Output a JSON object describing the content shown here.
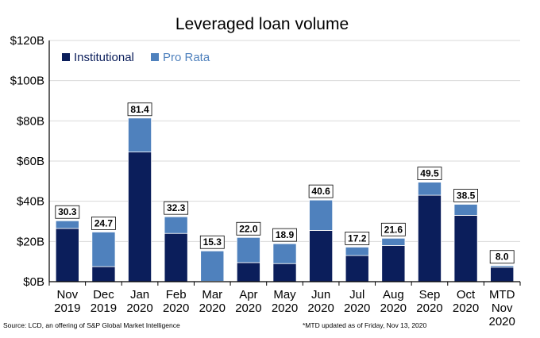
{
  "chart_data": {
    "type": "bar",
    "stacked": true,
    "title": "Leveraged loan volume",
    "xlabel": "",
    "ylabel": "",
    "categories": [
      [
        "Nov",
        "2019"
      ],
      [
        "Dec",
        "2019"
      ],
      [
        "Jan",
        "2020"
      ],
      [
        "Feb",
        "2020"
      ],
      [
        "Mar",
        "2020"
      ],
      [
        "Apr",
        "2020"
      ],
      [
        "May",
        "2020"
      ],
      [
        "Jun",
        "2020"
      ],
      [
        "Jul",
        "2020"
      ],
      [
        "Aug",
        "2020"
      ],
      [
        "Sep",
        "2020"
      ],
      [
        "Oct",
        "2020"
      ],
      [
        "MTD",
        "Nov",
        "2020"
      ]
    ],
    "series": [
      {
        "name": "Institutional",
        "color": "#0b1e5b",
        "values": [
          26.5,
          7.5,
          64.5,
          24.0,
          0.2,
          9.5,
          9.0,
          25.5,
          13.0,
          18.0,
          43.0,
          33.0,
          7.2
        ]
      },
      {
        "name": "Pro Rata",
        "color": "#4f81bd",
        "values": [
          3.8,
          17.2,
          16.9,
          8.3,
          15.1,
          12.5,
          9.9,
          15.1,
          4.2,
          3.6,
          6.5,
          5.5,
          0.8
        ]
      }
    ],
    "totals": [
      "30.3",
      "24.7",
      "81.4",
      "32.3",
      "15.3",
      "22.0",
      "18.9",
      "40.6",
      "17.2",
      "21.6",
      "49.5",
      "38.5",
      "8.0"
    ],
    "ylim": [
      0,
      120
    ],
    "yticks": [
      "$0B",
      "$20B",
      "$40B",
      "$60B",
      "$80B",
      "$100B",
      "$120B"
    ],
    "ytick_values": [
      0,
      20,
      40,
      60,
      80,
      100,
      120
    ],
    "grid": true,
    "legend_position": "top-left"
  },
  "footer": {
    "source": "Source: LCD, an offering of S&P Global Market Intelligence",
    "note": "*MTD updated as of Friday, Nov 13, 2020"
  }
}
